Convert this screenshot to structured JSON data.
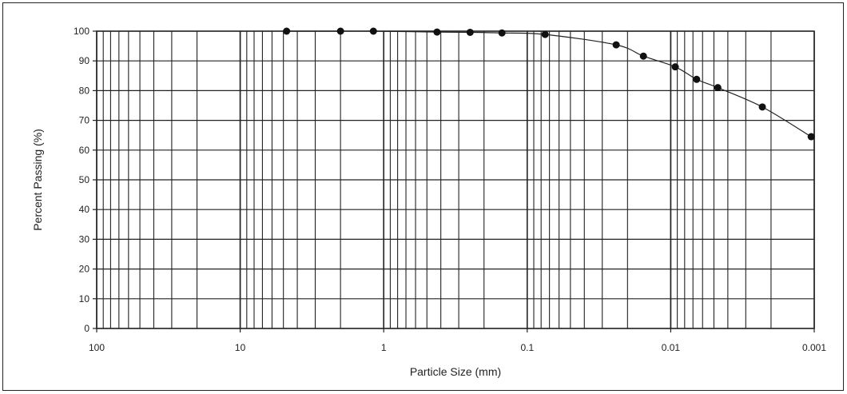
{
  "chart_data": {
    "type": "scatter",
    "title": "",
    "xlabel": "Particle Size (mm)",
    "ylabel": "Percent Passing (%)",
    "x_scale": "log",
    "x_reversed": true,
    "xlim": [
      100,
      0.001
    ],
    "ylim": [
      0,
      100
    ],
    "grid": true,
    "x_ticks": [
      {
        "value": 100,
        "label": "100"
      },
      {
        "value": 10,
        "label": "10"
      },
      {
        "value": 1,
        "label": "1"
      },
      {
        "value": 0.1,
        "label": "0.1"
      },
      {
        "value": 0.01,
        "label": "0.01"
      },
      {
        "value": 0.001,
        "label": "0.001"
      }
    ],
    "y_ticks": [
      {
        "value": 0,
        "label": "0"
      },
      {
        "value": 10,
        "label": "10"
      },
      {
        "value": 20,
        "label": "20"
      },
      {
        "value": 30,
        "label": "30"
      },
      {
        "value": 40,
        "label": "40"
      },
      {
        "value": 50,
        "label": "50"
      },
      {
        "value": 60,
        "label": "60"
      },
      {
        "value": 70,
        "label": "70"
      },
      {
        "value": 80,
        "label": "80"
      },
      {
        "value": 90,
        "label": "90"
      },
      {
        "value": 100,
        "label": "100"
      }
    ],
    "series": [
      {
        "points": [
          {
            "x": 4.75,
            "y": 100
          },
          {
            "x": 2.0,
            "y": 100
          },
          {
            "x": 1.18,
            "y": 100
          },
          {
            "x": 0.425,
            "y": 99.7
          },
          {
            "x": 0.25,
            "y": 99.6
          },
          {
            "x": 0.15,
            "y": 99.4
          },
          {
            "x": 0.075,
            "y": 98.9
          },
          {
            "x": 0.024,
            "y": 95.4
          },
          {
            "x": 0.0155,
            "y": 91.6
          },
          {
            "x": 0.0093,
            "y": 88.0
          },
          {
            "x": 0.0066,
            "y": 83.8
          },
          {
            "x": 0.0047,
            "y": 81.0
          },
          {
            "x": 0.0023,
            "y": 74.5
          },
          {
            "x": 0.00105,
            "y": 64.5
          }
        ]
      }
    ],
    "colors": {
      "line": "#222222",
      "marker": "#111111",
      "grid": "#222222"
    }
  }
}
